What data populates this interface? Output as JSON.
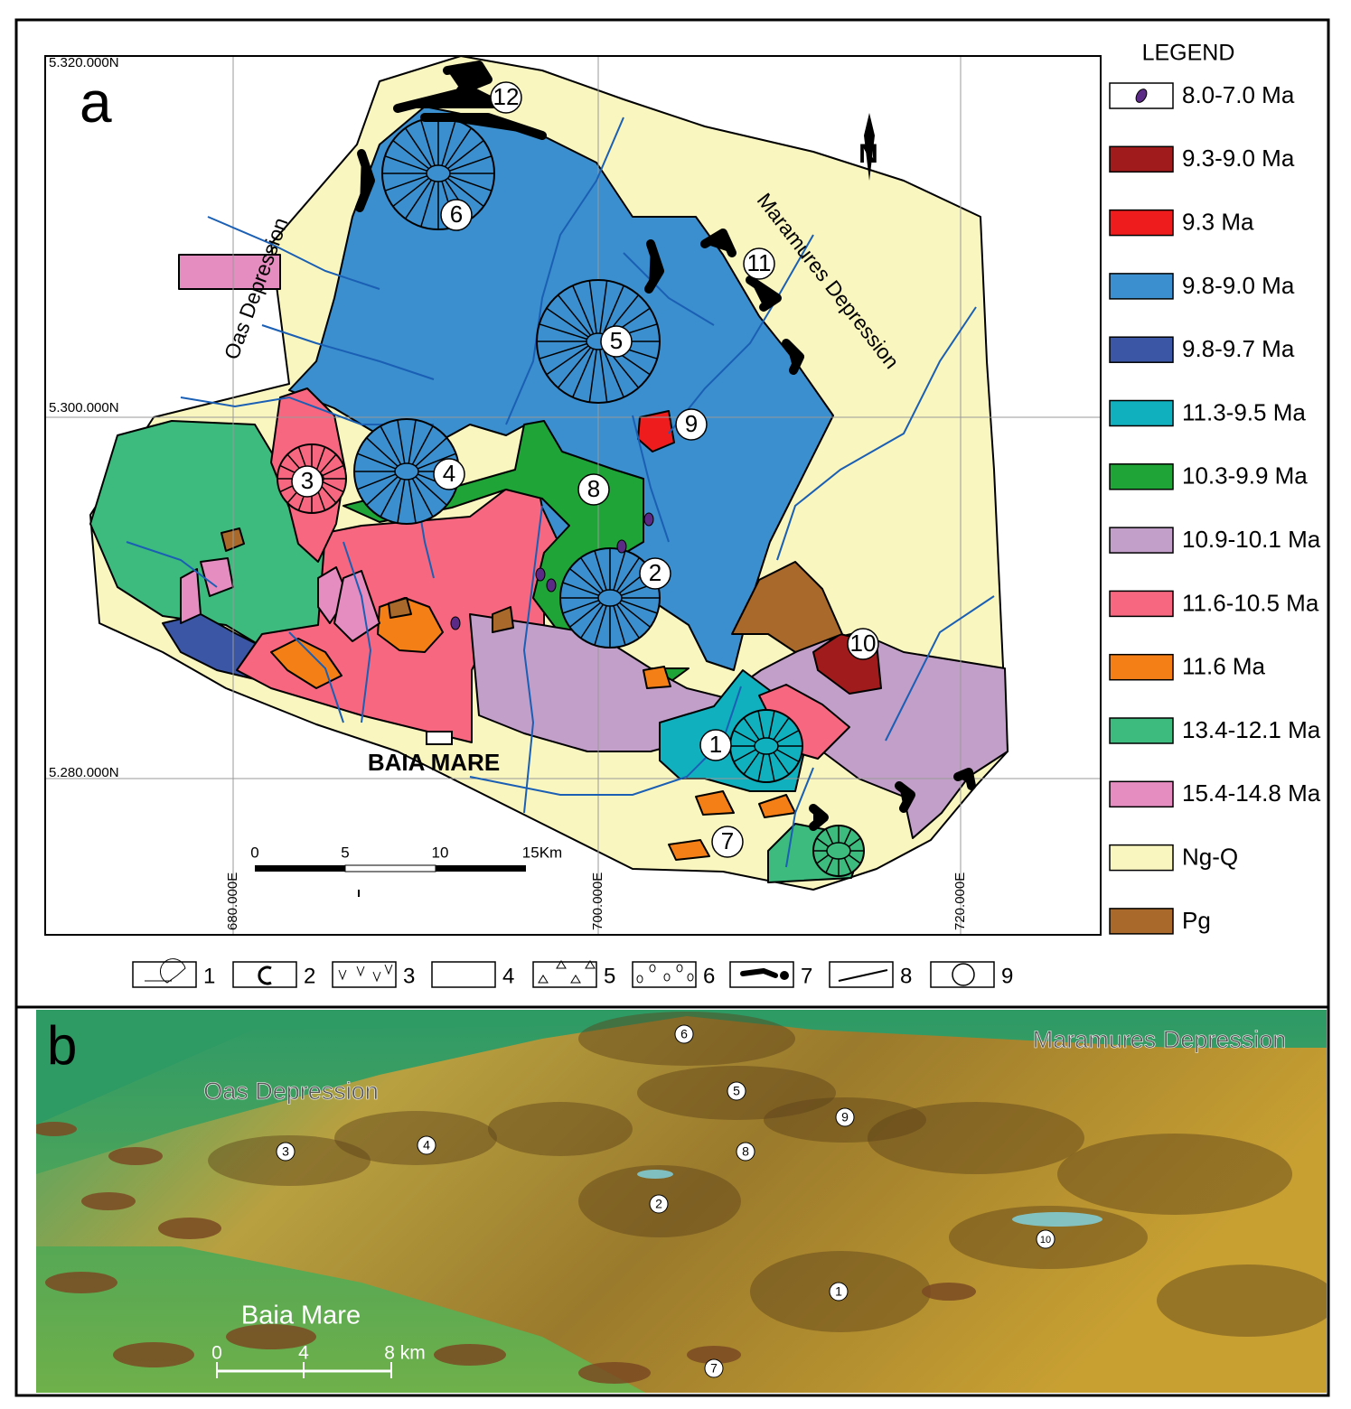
{
  "panel_a": {
    "label": "a",
    "northings": [
      "5.320.000N",
      "5.300.000N",
      "5.280.000N"
    ],
    "eastings": [
      "680.000E",
      "700.000E",
      "720.000E"
    ],
    "areas": [
      "Oas Depression",
      "Maramures Depression"
    ],
    "town": "BAIA MARE",
    "north": "N",
    "volcanoes": [
      "1",
      "2",
      "3",
      "4",
      "5",
      "6",
      "7",
      "8",
      "9",
      "10",
      "11",
      "12"
    ],
    "scale_bar": [
      "0",
      "5",
      "10",
      "15Km"
    ]
  },
  "legend": {
    "title": "LEGEND",
    "items": [
      {
        "label": "8.0-7.0 Ma",
        "color": "#5b2a86",
        "symbol": "dot"
      },
      {
        "label": "9.3-9.0 Ma",
        "color": "#a01c1c"
      },
      {
        "label": "9.3 Ma",
        "color": "#ee1c1c"
      },
      {
        "label": "9.8-9.0 Ma",
        "color": "#3b8fce"
      },
      {
        "label": "9.8-9.7 Ma",
        "color": "#3a56a4"
      },
      {
        "label": "11.3-9.5 Ma",
        "color": "#11b0bf"
      },
      {
        "label": "10.3-9.9 Ma",
        "color": "#1ea437"
      },
      {
        "label": "10.9-10.1 Ma",
        "color": "#c29fc9"
      },
      {
        "label": "11.6-10.5 Ma",
        "color": "#f7677f"
      },
      {
        "label": "11.6 Ma",
        "color": "#f57f17"
      },
      {
        "label": "13.4-12.1 Ma",
        "color": "#3dbb7e"
      },
      {
        "label": "15.4-14.8 Ma",
        "color": "#e58dc0"
      },
      {
        "label": "Ng-Q",
        "color": "#faf6c0"
      },
      {
        "label": "Pg",
        "color": "#a8692a"
      }
    ]
  },
  "symbols": {
    "labels": [
      "1",
      "2",
      "3",
      "4",
      "5",
      "6",
      "7",
      "8",
      "9"
    ]
  },
  "panel_b": {
    "label": "b",
    "areas": [
      "Oas Depression",
      "Maramures Depression"
    ],
    "town": "Baia Mare",
    "volcanoes": [
      "1",
      "2",
      "3",
      "4",
      "5",
      "6",
      "7",
      "8",
      "9",
      "10"
    ],
    "scale_bar": [
      "0",
      "4",
      "8 km"
    ]
  }
}
